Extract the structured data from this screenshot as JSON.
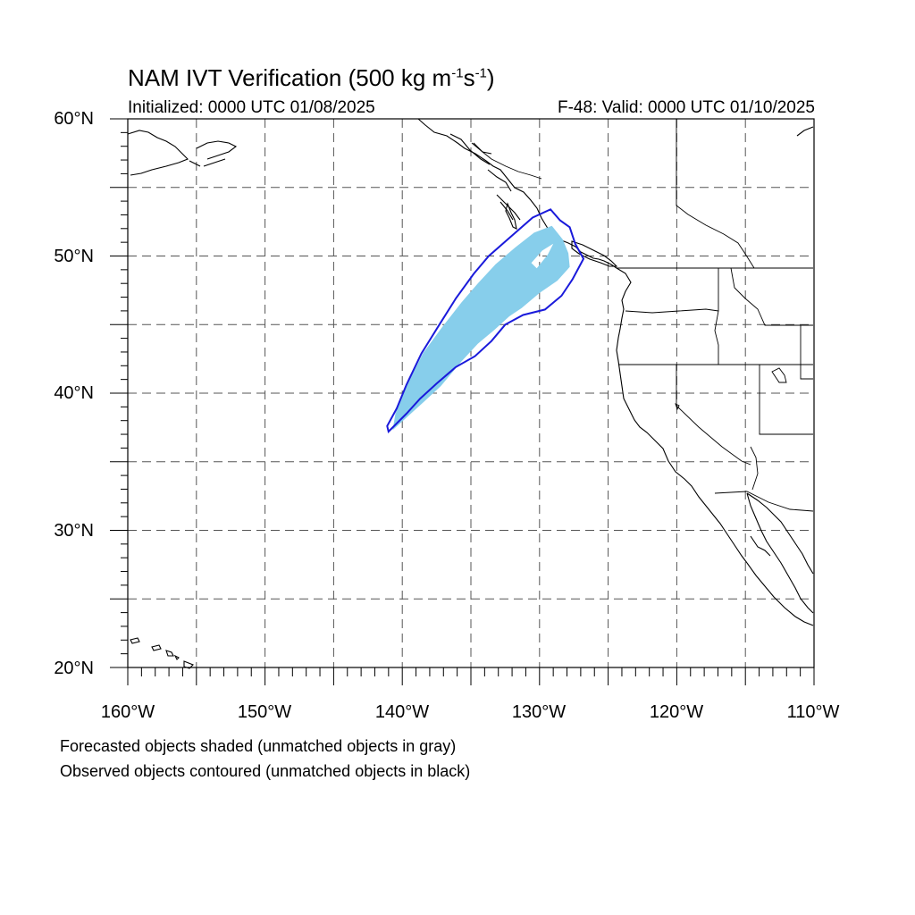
{
  "header": {
    "title_main": "NAM IVT Verification (500 kg m",
    "title_exp1": "-1",
    "title_mid": "s",
    "title_exp2": "-1",
    "title_end": ")",
    "initialized": "Initialized: 0000 UTC 01/08/2025",
    "valid": "F-48: Valid: 0000 UTC 01/10/2025"
  },
  "axes": {
    "lat_labels": [
      "60°N",
      "50°N",
      "40°N",
      "30°N",
      "20°N"
    ],
    "lon_labels": [
      "160°W",
      "150°W",
      "140°W",
      "130°W",
      "120°W",
      "110°W"
    ],
    "lat_range": [
      20,
      60
    ],
    "lon_range": [
      -160,
      -110
    ],
    "grid": true,
    "grid_step_deg": 5
  },
  "legend": {
    "line1": "Forecasted objects shaded (unmatched objects in gray)",
    "line2": "Observed objects contoured (unmatched objects in black)"
  },
  "colors": {
    "forecast_fill": "#87ceeb",
    "observed_contour": "#1a1adb",
    "coastline": "#000000",
    "grid": "#555555"
  },
  "objects": {
    "forecast_shaded": [
      [
        -140.7,
        37.3
      ],
      [
        -138.5,
        39.3
      ],
      [
        -137.2,
        40.5
      ],
      [
        -135.7,
        42.3
      ],
      [
        -134.5,
        43.6
      ],
      [
        -133.3,
        44.6
      ],
      [
        -132.2,
        45.6
      ],
      [
        -131.3,
        46.2
      ],
      [
        -130.0,
        47.3
      ],
      [
        -128.7,
        48.2
      ],
      [
        -127.8,
        49.2
      ],
      [
        -127.9,
        50.2
      ],
      [
        -128.3,
        51.2
      ],
      [
        -129.1,
        52.2
      ],
      [
        -130.4,
        51.7
      ],
      [
        -131.8,
        50.6
      ],
      [
        -133.2,
        49.4
      ],
      [
        -134.5,
        48.0
      ],
      [
        -135.7,
        46.6
      ],
      [
        -137.1,
        44.8
      ],
      [
        -138.5,
        42.9
      ],
      [
        -139.7,
        40.5
      ],
      [
        -140.5,
        38.5
      ]
    ],
    "forecast_hole": [
      [
        -130.2,
        49.1
      ],
      [
        -129.4,
        50.1
      ],
      [
        -129.0,
        50.9
      ],
      [
        -129.8,
        50.4
      ],
      [
        -130.6,
        49.5
      ]
    ],
    "observed_contour": [
      [
        -141.0,
        37.2
      ],
      [
        -139.7,
        38.5
      ],
      [
        -138.7,
        39.6
      ],
      [
        -137.5,
        40.7
      ],
      [
        -136.1,
        41.9
      ],
      [
        -134.7,
        42.7
      ],
      [
        -133.5,
        43.8
      ],
      [
        -132.5,
        45.0
      ],
      [
        -131.2,
        45.7
      ],
      [
        -129.6,
        46.1
      ],
      [
        -128.4,
        47.1
      ],
      [
        -127.6,
        48.3
      ],
      [
        -126.8,
        49.8
      ],
      [
        -127.4,
        50.9
      ],
      [
        -127.8,
        52.1
      ],
      [
        -128.5,
        52.6
      ],
      [
        -129.2,
        53.4
      ],
      [
        -130.5,
        52.8
      ],
      [
        -132.1,
        51.4
      ],
      [
        -133.7,
        50.0
      ],
      [
        -134.8,
        48.7
      ],
      [
        -136.1,
        46.9
      ],
      [
        -137.3,
        45.0
      ],
      [
        -138.6,
        42.9
      ],
      [
        -139.7,
        40.6
      ],
      [
        -140.4,
        38.9
      ],
      [
        -141.1,
        37.6
      ]
    ]
  }
}
